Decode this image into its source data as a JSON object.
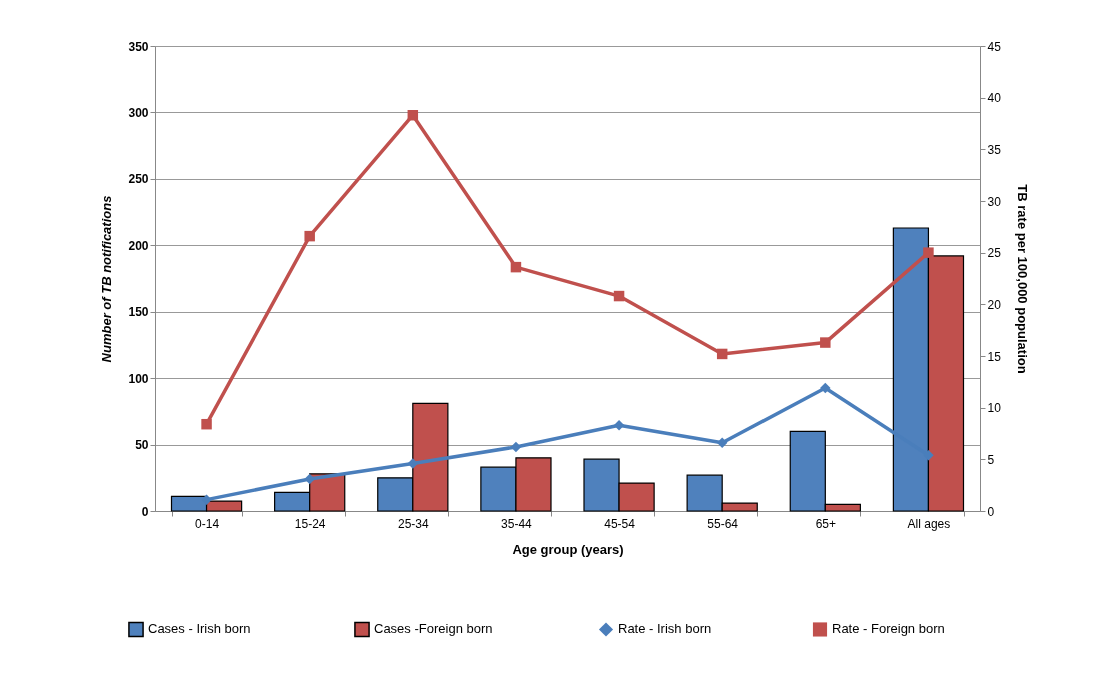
{
  "chart_data": {
    "type": "bar",
    "xlabel": "Age group (years)",
    "ylabel": "Number of TB notifications",
    "y2label": "TB rate per 100,000 population",
    "categories": [
      "0-14",
      "15-24",
      "25-34",
      "35-44",
      "45-54",
      "55-64",
      "65+",
      "All ages"
    ],
    "series": [
      {
        "name": "Cases - Irish born",
        "color": "#4f81bd",
        "values": [
          11,
          14,
          25,
          33,
          39,
          27,
          60,
          213
        ]
      },
      {
        "name": "Cases -Foreign born",
        "color": "#c0504d",
        "values": [
          7.5,
          28,
          81,
          40,
          21,
          6,
          5,
          192
        ]
      },
      {
        "name": "Rate - Irish born",
        "type": "line",
        "axis": "y2",
        "marker": "diamond",
        "color": "#4a7ebb",
        "values": [
          1.1,
          3.1,
          4.6,
          6.2,
          8.3,
          6.6,
          11.9,
          5.4
        ]
      },
      {
        "name": "Rate - Foreign born",
        "type": "line",
        "axis": "y2",
        "marker": "square",
        "color": "#c0504d",
        "values": [
          8.4,
          26.6,
          38.3,
          23.6,
          20.8,
          15.2,
          16.3,
          25.0
        ]
      }
    ],
    "ylim": [
      0,
      350
    ],
    "yticks": [
      0,
      50,
      100,
      150,
      200,
      250,
      300,
      350
    ],
    "y2lim": [
      0,
      45
    ],
    "y2ticks": [
      0,
      5,
      10,
      15,
      20,
      25,
      30,
      35,
      40,
      45
    ],
    "grid": "y",
    "legend": "bottom",
    "line_style": "solid"
  }
}
